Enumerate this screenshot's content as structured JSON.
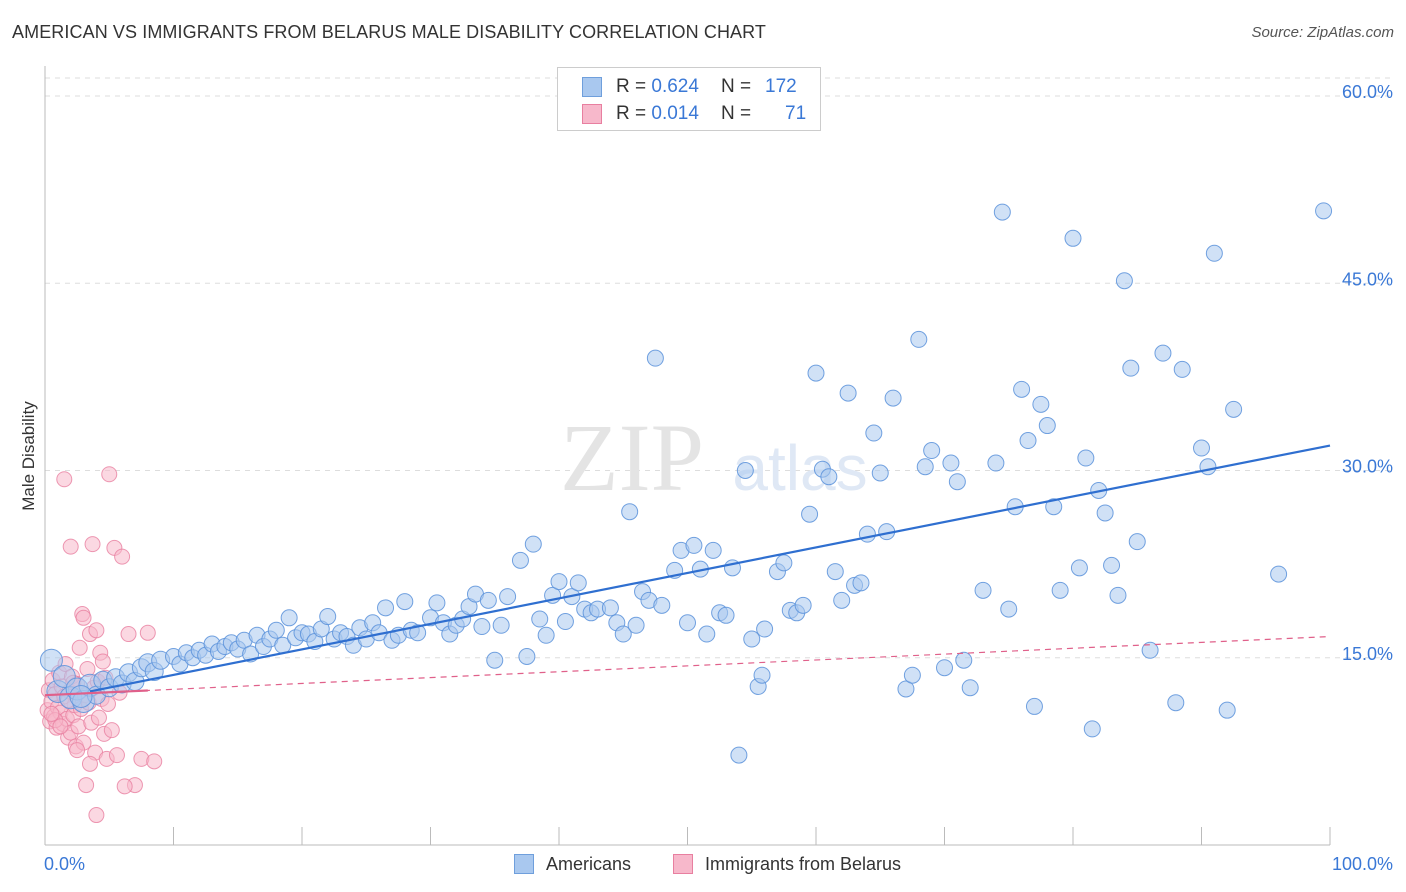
{
  "title": "AMERICAN VS IMMIGRANTS FROM BELARUS MALE DISABILITY CORRELATION CHART",
  "source": "Source: ZipAtlas.com",
  "watermark": {
    "zip": "ZIP",
    "atlas": "atlas"
  },
  "legend": {
    "r_label": "R =",
    "n_label": "N =",
    "rows": [
      {
        "r": "0.624",
        "n": "172",
        "color": "#a9c8ef",
        "border": "#6f9fdc"
      },
      {
        "r": "0.014",
        "n": "71",
        "color": "#f7b8cb",
        "border": "#e87fa0"
      }
    ]
  },
  "bottom_legend": [
    {
      "label": "Americans",
      "color": "#a9c8ef",
      "border": "#6f9fdc"
    },
    {
      "label": "Immigrants from Belarus",
      "color": "#f7b8cb",
      "border": "#e87fa0"
    }
  ],
  "chart_data": {
    "type": "scatter",
    "title": "AMERICAN VS IMMIGRANTS FROM BELARUS MALE DISABILITY CORRELATION CHART",
    "xlabel": "",
    "ylabel": "Male Disability",
    "xlim": [
      0,
      100
    ],
    "ylim": [
      0,
      60
    ],
    "x_tick_labels": [
      "0.0%",
      "100.0%"
    ],
    "y_ticks": [
      15,
      30,
      45,
      60
    ],
    "y_tick_labels": [
      "15.0%",
      "30.0%",
      "45.0%",
      "60.0%"
    ],
    "grid": true,
    "colors": {
      "americans_fill": "#a9c8ef",
      "americans_stroke": "#5b92da",
      "americans_line": "#2f6fd0",
      "belarus_fill": "#f7b8cb",
      "belarus_stroke": "#e87fa0",
      "belarus_line": "#e0608a",
      "tick_label": "#3a78d6"
    },
    "series": [
      {
        "name": "Americans",
        "trend": {
          "x": [
            3.5,
            100
          ],
          "y": [
            12.3,
            32.0
          ],
          "style": "solid"
        },
        "points": [
          [
            0.5,
            14.8
          ],
          [
            1,
            12.3
          ],
          [
            1.5,
            13.5
          ],
          [
            2,
            11.8
          ],
          [
            2.5,
            12.5
          ],
          [
            3,
            11.5
          ],
          [
            3.5,
            12.8
          ],
          [
            4,
            12.0
          ],
          [
            4.5,
            13.2
          ],
          [
            5,
            12.6
          ],
          [
            5.5,
            13.4
          ],
          [
            6,
            12.9
          ],
          [
            6.5,
            13.8
          ],
          [
            7,
            13.1
          ],
          [
            7.5,
            14.2
          ],
          [
            8,
            14.6
          ],
          [
            8.5,
            13.9
          ],
          [
            9,
            14.8
          ],
          [
            10,
            15.1
          ],
          [
            10.5,
            14.5
          ],
          [
            11,
            15.4
          ],
          [
            11.5,
            15.0
          ],
          [
            12,
            15.6
          ],
          [
            12.5,
            15.2
          ],
          [
            13,
            16.1
          ],
          [
            13.5,
            15.5
          ],
          [
            14,
            15.9
          ],
          [
            14.5,
            16.2
          ],
          [
            15,
            15.7
          ],
          [
            15.5,
            16.4
          ],
          [
            16,
            15.3
          ],
          [
            16.5,
            16.8
          ],
          [
            17,
            15.9
          ],
          [
            17.5,
            16.5
          ],
          [
            18,
            17.2
          ],
          [
            18.5,
            16.0
          ],
          [
            19,
            18.2
          ],
          [
            19.5,
            16.6
          ],
          [
            20,
            17.0
          ],
          [
            20.5,
            16.9
          ],
          [
            21,
            16.3
          ],
          [
            21.5,
            17.3
          ],
          [
            22,
            18.3
          ],
          [
            22.5,
            16.5
          ],
          [
            23,
            17.0
          ],
          [
            23.5,
            16.7
          ],
          [
            24,
            16.0
          ],
          [
            24.5,
            17.4
          ],
          [
            25,
            16.5
          ],
          [
            25.5,
            17.8
          ],
          [
            26,
            17.0
          ],
          [
            26.5,
            19.0
          ],
          [
            27,
            16.4
          ],
          [
            27.5,
            16.8
          ],
          [
            28,
            19.5
          ],
          [
            28.5,
            17.2
          ],
          [
            29,
            17.0
          ],
          [
            30,
            18.2
          ],
          [
            30.5,
            19.4
          ],
          [
            31,
            17.8
          ],
          [
            31.5,
            16.9
          ],
          [
            32,
            17.6
          ],
          [
            32.5,
            18.1
          ],
          [
            33,
            19.1
          ],
          [
            33.5,
            20.1
          ],
          [
            34,
            17.5
          ],
          [
            34.5,
            19.6
          ],
          [
            35,
            14.8
          ],
          [
            35.5,
            17.6
          ],
          [
            36,
            19.9
          ],
          [
            37,
            22.8
          ],
          [
            37.5,
            15.1
          ],
          [
            38,
            24.1
          ],
          [
            38.5,
            18.1
          ],
          [
            39,
            16.8
          ],
          [
            39.5,
            20.0
          ],
          [
            40,
            21.1
          ],
          [
            40.5,
            17.9
          ],
          [
            41,
            19.9
          ],
          [
            41.5,
            21.0
          ],
          [
            42,
            18.9
          ],
          [
            42.5,
            18.6
          ],
          [
            43,
            18.9
          ],
          [
            44,
            19.0
          ],
          [
            44.5,
            17.8
          ],
          [
            45,
            16.9
          ],
          [
            45.5,
            26.7
          ],
          [
            46,
            17.6
          ],
          [
            46.5,
            20.3
          ],
          [
            47,
            19.6
          ],
          [
            47.5,
            39.0
          ],
          [
            48,
            19.2
          ],
          [
            49,
            22.0
          ],
          [
            49.5,
            23.6
          ],
          [
            50,
            17.8
          ],
          [
            50.5,
            24.0
          ],
          [
            51,
            22.1
          ],
          [
            51.5,
            16.9
          ],
          [
            52,
            23.6
          ],
          [
            52.5,
            18.6
          ],
          [
            53,
            18.4
          ],
          [
            53.5,
            22.2
          ],
          [
            54,
            7.2
          ],
          [
            54.5,
            30.0
          ],
          [
            55,
            16.5
          ],
          [
            55.5,
            12.7
          ],
          [
            55.8,
            13.6
          ],
          [
            56,
            17.3
          ],
          [
            57,
            21.9
          ],
          [
            57.5,
            22.6
          ],
          [
            58,
            18.8
          ],
          [
            58.5,
            18.6
          ],
          [
            59,
            19.2
          ],
          [
            59.5,
            26.5
          ],
          [
            60,
            37.8
          ],
          [
            60.5,
            30.1
          ],
          [
            61,
            29.5
          ],
          [
            61.5,
            21.9
          ],
          [
            62,
            19.6
          ],
          [
            62.5,
            36.2
          ],
          [
            63,
            20.8
          ],
          [
            63.5,
            21.0
          ],
          [
            64,
            24.9
          ],
          [
            64.5,
            33.0
          ],
          [
            65,
            29.8
          ],
          [
            65.5,
            25.1
          ],
          [
            66,
            35.8
          ],
          [
            67,
            12.5
          ],
          [
            67.5,
            13.6
          ],
          [
            68,
            40.5
          ],
          [
            68.5,
            30.3
          ],
          [
            69,
            31.6
          ],
          [
            70,
            14.2
          ],
          [
            70.5,
            30.6
          ],
          [
            71,
            29.1
          ],
          [
            71.5,
            14.8
          ],
          [
            72,
            12.6
          ],
          [
            73,
            20.4
          ],
          [
            74,
            30.6
          ],
          [
            74.5,
            50.7
          ],
          [
            75,
            18.9
          ],
          [
            75.5,
            27.1
          ],
          [
            76,
            36.5
          ],
          [
            76.5,
            32.4
          ],
          [
            77,
            11.1
          ],
          [
            77.5,
            35.3
          ],
          [
            78,
            33.6
          ],
          [
            78.5,
            27.1
          ],
          [
            79,
            20.4
          ],
          [
            80,
            48.6
          ],
          [
            80.5,
            22.2
          ],
          [
            81,
            31.0
          ],
          [
            81.5,
            9.3
          ],
          [
            82,
            28.4
          ],
          [
            82.5,
            26.6
          ],
          [
            83,
            22.4
          ],
          [
            83.5,
            20.0
          ],
          [
            84,
            45.2
          ],
          [
            84.5,
            38.2
          ],
          [
            85,
            24.3
          ],
          [
            86,
            15.6
          ],
          [
            87,
            39.4
          ],
          [
            88,
            11.4
          ],
          [
            88.5,
            38.1
          ],
          [
            90,
            31.8
          ],
          [
            90.5,
            30.3
          ],
          [
            91,
            47.4
          ],
          [
            92,
            10.8
          ],
          [
            92.5,
            34.9
          ],
          [
            96,
            21.7
          ],
          [
            99.5,
            50.8
          ],
          [
            2.8,
            11.9
          ]
        ]
      },
      {
        "name": "Immigrants from Belarus",
        "trend": {
          "x": [
            0,
            100
          ],
          "y": [
            12.0,
            16.7
          ],
          "style": "dashed",
          "solid_until_x": 8
        },
        "points": [
          [
            0.2,
            10.8
          ],
          [
            0.3,
            12.4
          ],
          [
            0.4,
            9.9
          ],
          [
            0.5,
            11.5
          ],
          [
            0.6,
            13.2
          ],
          [
            0.7,
            10.3
          ],
          [
            0.8,
            12.1
          ],
          [
            0.9,
            9.4
          ],
          [
            1,
            11.0
          ],
          [
            1.1,
            13.8
          ],
          [
            1.2,
            10.6
          ],
          [
            1.3,
            12.7
          ],
          [
            1.4,
            9.7
          ],
          [
            1.5,
            11.9
          ],
          [
            1.6,
            14.5
          ],
          [
            1.7,
            10.1
          ],
          [
            1.8,
            8.6
          ],
          [
            1.9,
            12.3
          ],
          [
            2,
            9.0
          ],
          [
            2.1,
            13.5
          ],
          [
            2.2,
            10.4
          ],
          [
            2.3,
            11.2
          ],
          [
            2.4,
            7.9
          ],
          [
            2.5,
            12.9
          ],
          [
            2.6,
            9.5
          ],
          [
            2.7,
            15.8
          ],
          [
            2.8,
            10.9
          ],
          [
            2.9,
            18.5
          ],
          [
            3,
            8.2
          ],
          [
            3.1,
            12.0
          ],
          [
            3.2,
            4.8
          ],
          [
            3.3,
            14.1
          ],
          [
            3.4,
            11.4
          ],
          [
            3.5,
            16.9
          ],
          [
            3.6,
            9.8
          ],
          [
            3.7,
            24.1
          ],
          [
            3.8,
            12.6
          ],
          [
            3.9,
            7.4
          ],
          [
            4,
            17.2
          ],
          [
            4.1,
            13.1
          ],
          [
            4.2,
            10.2
          ],
          [
            4.3,
            15.4
          ],
          [
            4.4,
            11.7
          ],
          [
            4.5,
            14.7
          ],
          [
            4.6,
            8.9
          ],
          [
            4.7,
            13.4
          ],
          [
            4.8,
            6.9
          ],
          [
            4.9,
            11.3
          ],
          [
            5,
            29.7
          ],
          [
            5.2,
            9.2
          ],
          [
            5.4,
            23.8
          ],
          [
            5.6,
            7.2
          ],
          [
            5.8,
            12.2
          ],
          [
            6,
            23.1
          ],
          [
            6.5,
            16.9
          ],
          [
            7,
            4.8
          ],
          [
            7.5,
            6.9
          ],
          [
            8,
            17.0
          ],
          [
            8.5,
            6.7
          ],
          [
            2.0,
            23.9
          ],
          [
            3.0,
            18.2
          ],
          [
            4.0,
            2.4
          ],
          [
            1.5,
            29.3
          ],
          [
            2.5,
            7.6
          ],
          [
            0.8,
            10.0
          ],
          [
            1.2,
            9.5
          ],
          [
            1.8,
            11.6
          ],
          [
            2.2,
            13.0
          ],
          [
            0.5,
            10.5
          ],
          [
            6.2,
            4.7
          ],
          [
            3.5,
            6.5
          ]
        ]
      }
    ]
  }
}
